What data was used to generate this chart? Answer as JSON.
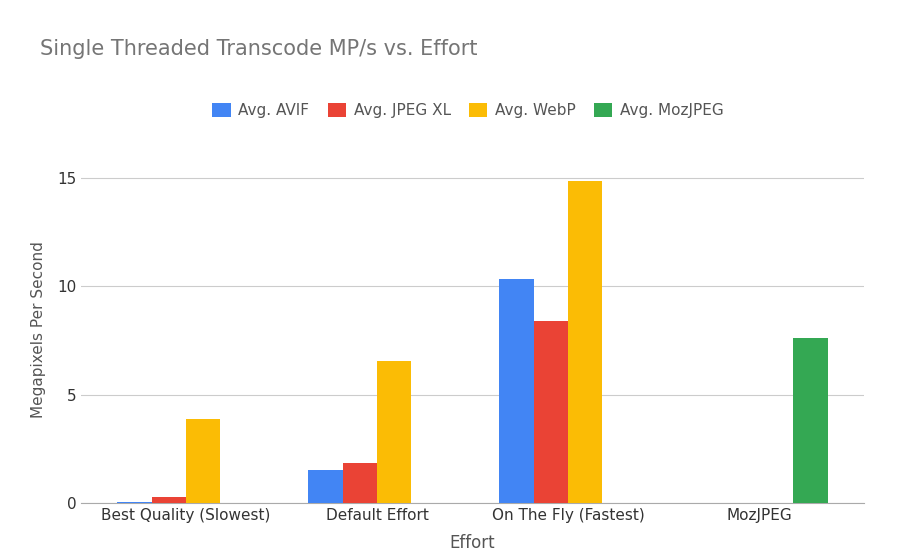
{
  "title": "Single Threaded Transcode MP/s vs. Effort",
  "xlabel": "Effort",
  "ylabel": "Megapixels Per Second",
  "categories": [
    "Best Quality (Slowest)",
    "Default Effort",
    "On The Fly (Fastest)",
    "MozJPEG"
  ],
  "series": [
    {
      "label": "Avg. AVIF",
      "color": "#4285F4",
      "values": [
        0.05,
        1.55,
        10.35,
        0.0
      ]
    },
    {
      "label": "Avg. JPEG XL",
      "color": "#EA4335",
      "values": [
        0.3,
        1.85,
        8.4,
        0.0
      ]
    },
    {
      "label": "Avg. WebP",
      "color": "#FBBC05",
      "values": [
        3.9,
        6.55,
        14.85,
        0.0
      ]
    },
    {
      "label": "Avg. MozJPEG",
      "color": "#34A853",
      "values": [
        0.0,
        0.0,
        0.0,
        7.6
      ]
    }
  ],
  "ylim": [
    0,
    16
  ],
  "yticks": [
    0,
    5,
    10,
    15
  ],
  "background_color": "#ffffff",
  "title_fontsize": 15,
  "title_color": "#757575",
  "bar_width": 0.18,
  "grid_color": "#cccccc",
  "tick_color": "#333333",
  "label_color": "#555555"
}
